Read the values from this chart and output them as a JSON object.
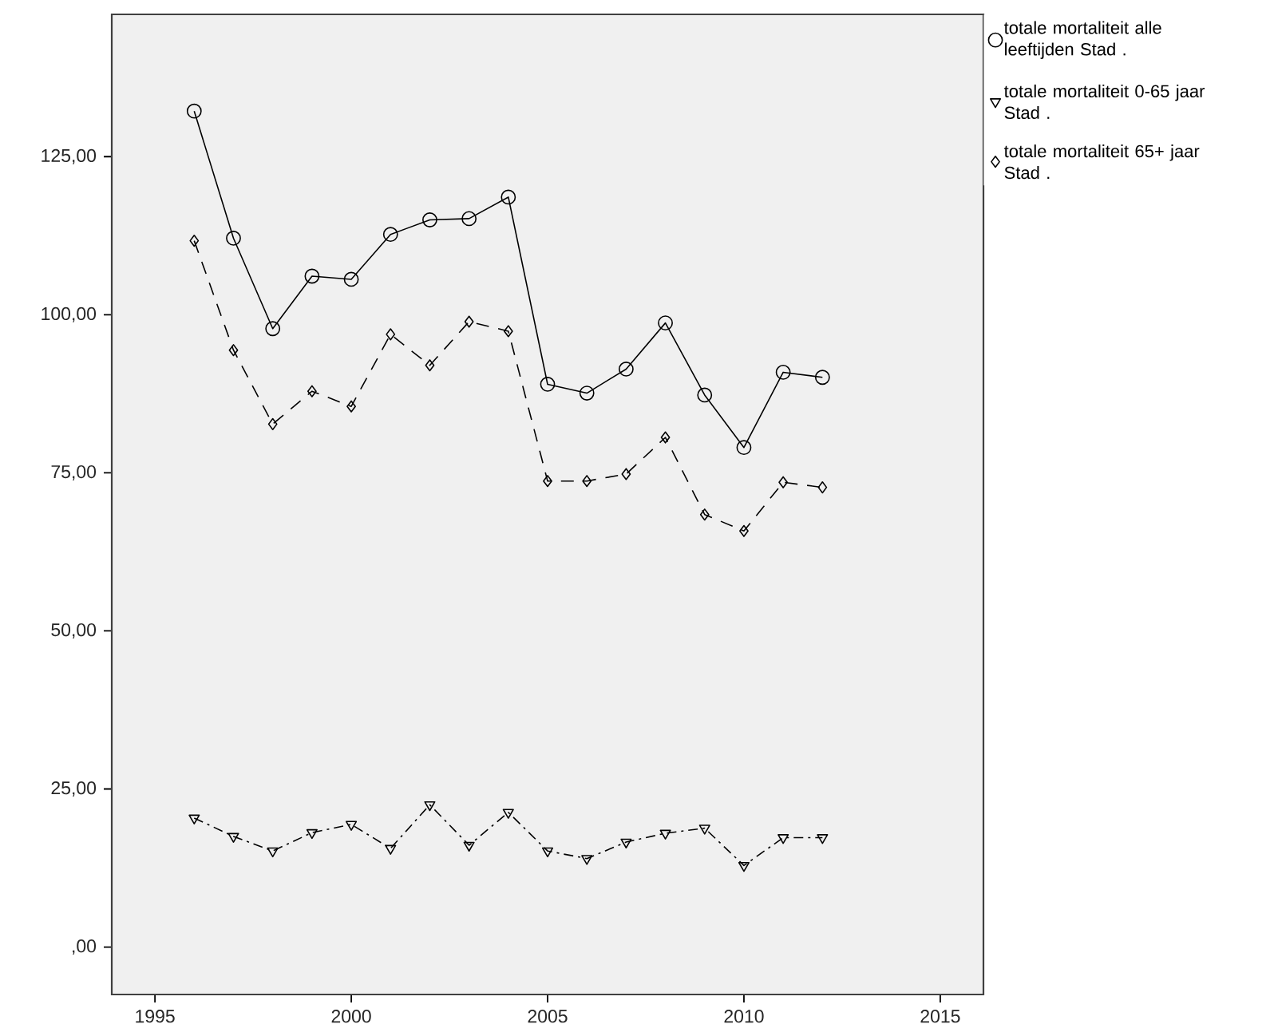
{
  "chart_data": {
    "type": "line",
    "x": [
      1996,
      1997,
      1998,
      1999,
      2000,
      2001,
      2002,
      2003,
      2004,
      2005,
      2006,
      2007,
      2008,
      2009,
      2010,
      2011,
      2012
    ],
    "xlim": [
      1993.9,
      2016.1
    ],
    "xticks": [
      1995,
      2000,
      2005,
      2010,
      2015
    ],
    "ylim": [
      -7.5,
      147.5
    ],
    "yticks": [
      {
        "value": 0,
        "label": ",00"
      },
      {
        "value": 25,
        "label": "25,00"
      },
      {
        "value": 50,
        "label": "50,00"
      },
      {
        "value": 75,
        "label": "75,00"
      },
      {
        "value": 100,
        "label": "100,00"
      },
      {
        "value": 125,
        "label": "125,00"
      }
    ],
    "legend": "top right",
    "series": [
      {
        "name": "totale mortaliteit alle leeftijden Stad .",
        "color": "#000000",
        "marker": "circle",
        "line_style": "solid",
        "values": [
          132.2,
          112.1,
          97.8,
          106.1,
          105.6,
          112.7,
          115.0,
          115.2,
          118.6,
          89.0,
          87.6,
          91.4,
          98.7,
          87.3,
          79.0,
          90.9,
          90.1
        ]
      },
      {
        "name": "totale mortaliteit 0-65 jaar Stad .",
        "color": "#000000",
        "marker": "triangle",
        "line_style": "dashdot",
        "values": [
          20.4,
          17.5,
          15.2,
          18.1,
          19.4,
          15.6,
          22.5,
          16.1,
          21.3,
          15.2,
          14.0,
          16.6,
          18.0,
          18.8,
          12.9,
          17.3,
          17.3
        ]
      },
      {
        "name": "totale mortaliteit 65+ jaar Stad .",
        "color": "#000000",
        "marker": "diamond",
        "line_style": "dashed",
        "values": [
          111.7,
          94.4,
          82.7,
          87.9,
          85.5,
          96.9,
          92.0,
          98.9,
          97.4,
          73.7,
          73.7,
          74.8,
          80.6,
          68.4,
          65.8,
          73.5,
          72.7
        ]
      }
    ]
  }
}
